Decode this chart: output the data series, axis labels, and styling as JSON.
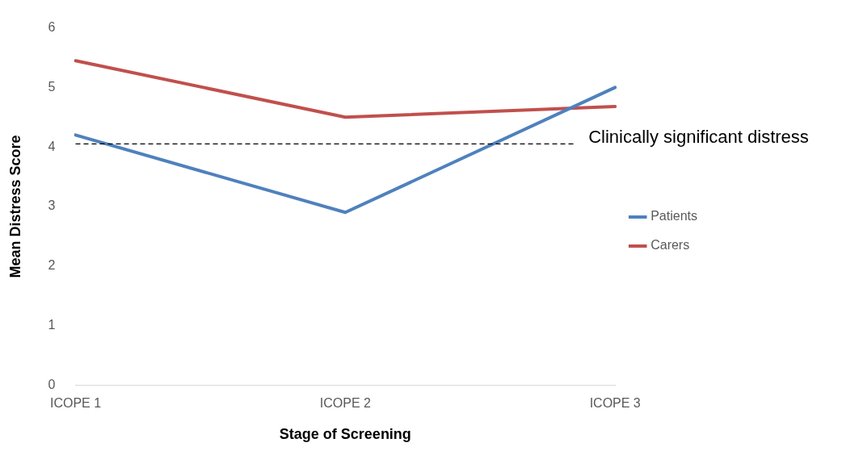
{
  "chart_data": {
    "type": "line",
    "xlabel": "Stage of Screening",
    "ylabel": "Mean Distress Score",
    "categories": [
      "ICOPE 1",
      "ICOPE 2",
      "ICOPE 3"
    ],
    "series": [
      {
        "name": "Patients",
        "color": "#4f81bd",
        "values": [
          4.2,
          2.9,
          5.0
        ]
      },
      {
        "name": "Carers",
        "color": "#c0504d",
        "values": [
          5.45,
          4.5,
          4.68
        ]
      }
    ],
    "ylim": [
      0,
      6
    ],
    "yticks": [
      0,
      1,
      2,
      3,
      4,
      5,
      6
    ],
    "grid": false,
    "legend": "right",
    "marker": "none",
    "line_style": "solid",
    "ref_lines": [
      {
        "axis": "y",
        "value": 4.05,
        "label": "Clinically significant distress",
        "color": "#000000",
        "line_style": "dashed"
      }
    ]
  }
}
